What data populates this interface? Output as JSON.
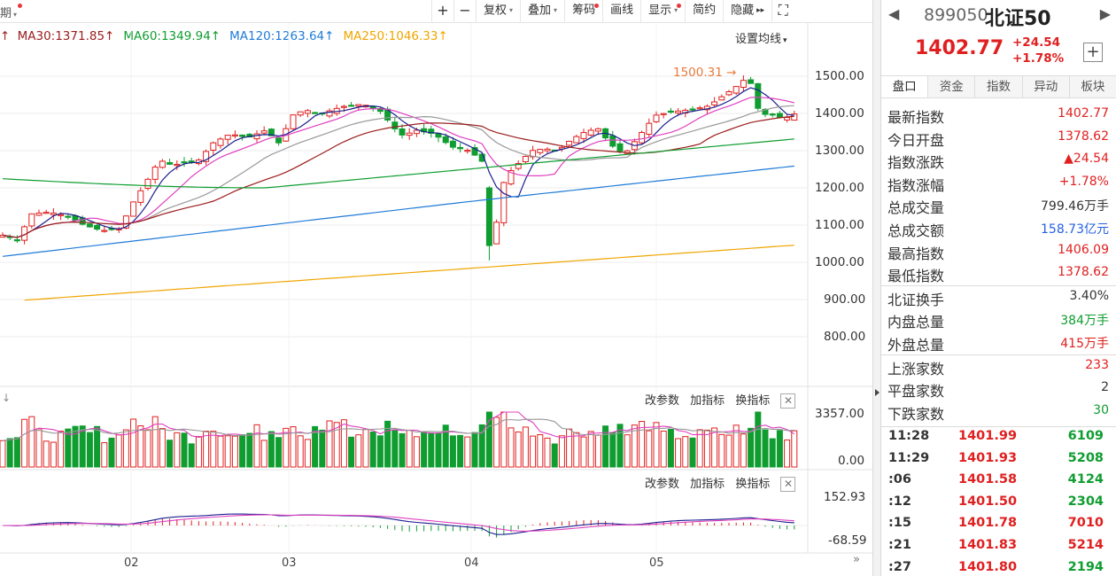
{
  "toolbar": {
    "left_label": "期",
    "buttons": [
      {
        "label": "+",
        "type": "zoom-in"
      },
      {
        "label": "−",
        "type": "zoom-out"
      },
      {
        "label": "复权",
        "dropdown": true
      },
      {
        "label": "叠加",
        "dropdown": true
      },
      {
        "label": "筹码",
        "dot": true
      },
      {
        "label": "画线"
      },
      {
        "label": "显示",
        "dropdown": true,
        "dot": true
      },
      {
        "label": "简约"
      },
      {
        "label": "隐藏",
        "arrows": true
      },
      {
        "label": "⛶",
        "type": "fullscreen"
      }
    ]
  },
  "ma_legend": [
    {
      "label": "MA30:1371.85",
      "arrow": "↑",
      "color": "#9b1c1c"
    },
    {
      "label": "MA60:1349.94",
      "arrow": "↑",
      "color": "#0f9d30"
    },
    {
      "label": "MA120:1263.64",
      "arrow": "↑",
      "color": "#1f7bd8"
    },
    {
      "label": "MA250:1046.33",
      "arrow": "↑",
      "color": "#f0a500"
    }
  ],
  "set_ma_label": "设置均线",
  "price_axis": [
    "1500.00",
    "1400.00",
    "1300.00",
    "1200.00",
    "1100.00",
    "1000.00",
    "900.00",
    "800.00"
  ],
  "peak_label": "1500.31",
  "volume_panel": {
    "tools": [
      "改参数",
      "加指标",
      "换指标"
    ],
    "axis": [
      "3357.00",
      "0.00"
    ]
  },
  "macd_panel": {
    "tools": [
      "改参数",
      "加指标",
      "换指标"
    ],
    "axis": [
      "152.93",
      "-68.59"
    ]
  },
  "date_labels": [
    "02",
    "03",
    "04",
    "05"
  ],
  "colors": {
    "up": "#e02020",
    "down": "#0f9d30",
    "ma5": "#1b1f8f",
    "ma10": "#e040c0",
    "ma20": "#999999"
  },
  "quote": {
    "code": "899050",
    "name": "北证50",
    "price": "1402.77",
    "change": "+24.54",
    "change_pct": "+1.78%",
    "tabs": [
      "盘口",
      "资金",
      "指数",
      "异动",
      "板块"
    ],
    "groups": [
      [
        {
          "k": "最新指数",
          "v": "1402.77",
          "c": "red"
        },
        {
          "k": "今日开盘",
          "v": "1378.62",
          "c": "red"
        },
        {
          "k": "指数涨跌",
          "v": "▲24.54",
          "c": "red"
        },
        {
          "k": "指数涨幅",
          "v": "+1.78%",
          "c": "red"
        },
        {
          "k": "总成交量",
          "v": "799.46",
          "unit": "万手",
          "c": "dark"
        },
        {
          "k": "总成交额",
          "v": "158.73",
          "unit": "亿元",
          "c": "blue"
        },
        {
          "k": "最高指数",
          "v": "1406.09",
          "c": "red"
        },
        {
          "k": "最低指数",
          "v": "1378.62",
          "c": "red"
        }
      ],
      [
        {
          "k": "北证换手",
          "v": "3.40%",
          "c": "dark"
        },
        {
          "k": "内盘总量",
          "v": "384",
          "unit": "万手",
          "c": "green"
        },
        {
          "k": "外盘总量",
          "v": "415",
          "unit": "万手",
          "c": "red"
        }
      ],
      [
        {
          "k": "上涨家数",
          "v": "233",
          "c": "red"
        },
        {
          "k": "平盘家数",
          "v": "2",
          "c": "dark"
        },
        {
          "k": "下跌家数",
          "v": "30",
          "c": "green"
        }
      ]
    ],
    "ticks": [
      {
        "t": "11:28",
        "p": "1401.99",
        "v": "6109",
        "c": "green"
      },
      {
        "t": "11:29",
        "p": "1401.93",
        "v": "5208",
        "c": "green"
      },
      {
        "t": ":06",
        "p": "1401.58",
        "v": "4124",
        "c": "green"
      },
      {
        "t": ":12",
        "p": "1401.50",
        "v": "2304",
        "c": "green"
      },
      {
        "t": ":15",
        "p": "1401.78",
        "v": "7010",
        "c": "red"
      },
      {
        "t": ":21",
        "p": "1401.83",
        "v": "5214",
        "c": "red"
      },
      {
        "t": ":27",
        "p": "1401.80",
        "v": "2194",
        "c": "green"
      }
    ]
  }
}
